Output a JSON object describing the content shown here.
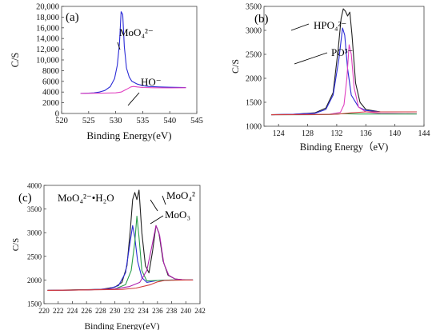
{
  "chart_data": [
    {
      "type": "line",
      "panel_label": "(a)",
      "xlabel": "Binding Energy(eV)",
      "ylabel": "C/S",
      "xlim": [
        520,
        545
      ],
      "ylim": [
        0,
        20000
      ],
      "xticks": [
        520,
        525,
        530,
        535,
        540,
        545
      ],
      "yticks": [
        0,
        2000,
        4000,
        6000,
        8000,
        10000,
        12000,
        14000,
        16000,
        18000,
        20000
      ],
      "ytick_labels": [
        "0",
        "2000",
        "4000",
        "6000",
        "8000",
        "10,000",
        "12,000",
        "14,000",
        "16,000",
        "18,000",
        "20,000"
      ],
      "annotations": [
        {
          "text": "MoO₄²⁻",
          "x": 531.0,
          "y": 18900
        },
        {
          "text": "HO⁻",
          "x": 532.8,
          "y": 5100
        }
      ],
      "series": [
        {
          "color": "#2b2bd6",
          "points": [
            [
              523.5,
              3750
            ],
            [
              525,
              3800
            ],
            [
              526,
              3850
            ],
            [
              527,
              4000
            ],
            [
              528,
              4300
            ],
            [
              529,
              5000
            ],
            [
              529.8,
              6500
            ],
            [
              530.3,
              9000
            ],
            [
              530.7,
              13000
            ],
            [
              531,
              19000
            ],
            [
              531.3,
              18500
            ],
            [
              531.6,
              12500
            ],
            [
              532,
              8500
            ],
            [
              532.5,
              6800
            ],
            [
              533,
              6000
            ],
            [
              534,
              5500
            ],
            [
              535,
              5200
            ],
            [
              536,
              5050
            ],
            [
              538,
              4950
            ],
            [
              540,
              4900
            ],
            [
              543,
              4850
            ]
          ]
        },
        {
          "color": "#e040c0",
          "points": [
            [
              523.5,
              3750
            ],
            [
              526,
              3780
            ],
            [
              528,
              3800
            ],
            [
              530,
              3850
            ],
            [
              531,
              4000
            ],
            [
              532,
              4500
            ],
            [
              532.8,
              4950
            ],
            [
              533.3,
              5050
            ],
            [
              534,
              4950
            ],
            [
              535,
              4850
            ],
            [
              537,
              4800
            ],
            [
              540,
              4780
            ],
            [
              543,
              4800
            ]
          ]
        }
      ]
    },
    {
      "type": "line",
      "panel_label": "(b)",
      "xlabel": "Binding Energy（eV)",
      "ylabel": "C/S",
      "xlim": [
        122,
        144
      ],
      "ylim": [
        1000,
        3500
      ],
      "xticks": [
        124,
        128,
        132,
        136,
        140,
        144
      ],
      "yticks": [
        1000,
        1500,
        2000,
        2500,
        3000,
        3500
      ],
      "ytick_labels": [
        "1000",
        "1500",
        "2000",
        "2500",
        "3000",
        "3500"
      ],
      "annotations": [
        {
          "text": "HPO₄²⁻",
          "x": 133.2,
          "y": 3050
        },
        {
          "text": "PO³⁻",
          "x": 133.8,
          "y": 2700
        }
      ],
      "series": [
        {
          "color": "#222222",
          "points": [
            [
              123,
              1240
            ],
            [
              126,
              1250
            ],
            [
              129,
              1280
            ],
            [
              130.5,
              1380
            ],
            [
              131.5,
              1700
            ],
            [
              132.2,
              2600
            ],
            [
              132.6,
              3250
            ],
            [
              132.9,
              3450
            ],
            [
              133.2,
              3400
            ],
            [
              133.5,
              3300
            ],
            [
              133.8,
              3380
            ],
            [
              134.1,
              2900
            ],
            [
              134.6,
              1900
            ],
            [
              135.2,
              1500
            ],
            [
              136,
              1350
            ],
            [
              138,
              1300
            ],
            [
              140,
              1300
            ],
            [
              143,
              1300
            ]
          ]
        },
        {
          "color": "#2b2bd6",
          "points": [
            [
              123,
              1240
            ],
            [
              126,
              1250
            ],
            [
              129,
              1270
            ],
            [
              130.5,
              1350
            ],
            [
              131.5,
              1650
            ],
            [
              132.3,
              2400
            ],
            [
              132.8,
              3050
            ],
            [
              133.1,
              2900
            ],
            [
              133.5,
              2200
            ],
            [
              134,
              1650
            ],
            [
              135,
              1400
            ],
            [
              136,
              1330
            ],
            [
              138,
              1300
            ],
            [
              143,
              1300
            ]
          ]
        },
        {
          "color": "#e040c0",
          "points": [
            [
              123,
              1240
            ],
            [
              128,
              1245
            ],
            [
              131,
              1250
            ],
            [
              132.5,
              1290
            ],
            [
              133,
              1450
            ],
            [
              133.4,
              2000
            ],
            [
              133.7,
              2700
            ],
            [
              134.0,
              2500
            ],
            [
              134.4,
              1800
            ],
            [
              135,
              1400
            ],
            [
              136,
              1300
            ],
            [
              138,
              1270
            ],
            [
              143,
              1260
            ]
          ]
        },
        {
          "color": "#2a9e4a",
          "points": [
            [
              123,
              1240
            ],
            [
              128,
              1240
            ],
            [
              131,
              1245
            ],
            [
              132.5,
              1260
            ],
            [
              133.5,
              1260
            ],
            [
              135,
              1255
            ],
            [
              138,
              1255
            ],
            [
              143,
              1255
            ]
          ]
        },
        {
          "color": "#d23c3c",
          "points": [
            [
              123,
              1240
            ],
            [
              128,
              1242
            ],
            [
              132,
              1250
            ],
            [
              134,
              1280
            ],
            [
              136,
              1300
            ],
            [
              140,
              1300
            ],
            [
              143,
              1300
            ]
          ]
        }
      ]
    },
    {
      "type": "line",
      "panel_label": "(c)",
      "xlabel": "Binding Energy(eV)",
      "ylabel": "C/S",
      "xlim": [
        220,
        242
      ],
      "ylim": [
        1500,
        4000
      ],
      "xticks": [
        220,
        222,
        224,
        226,
        228,
        230,
        232,
        234,
        236,
        238,
        240,
        242
      ],
      "yticks": [
        1500,
        2000,
        2500,
        3000,
        3500,
        4000
      ],
      "ytick_labels": [
        "1500",
        "2000",
        "2500",
        "3000",
        "3500",
        "4000"
      ],
      "annotations": [
        {
          "text": "MoO₄²⁻•H₂O",
          "x": 232.4,
          "y": 3150
        },
        {
          "text": "MoO₄²",
          "x": 233.0,
          "y": 3800
        },
        {
          "text": "MoO₃",
          "x": 235.9,
          "y": 3150
        }
      ],
      "series": [
        {
          "color": "#222222",
          "points": [
            [
              220.5,
              1780
            ],
            [
              224,
              1790
            ],
            [
              228,
              1800
            ],
            [
              230,
              1850
            ],
            [
              231,
              1950
            ],
            [
              231.7,
              2300
            ],
            [
              232.2,
              3100
            ],
            [
              232.5,
              3700
            ],
            [
              232.8,
              3850
            ],
            [
              233.1,
              3700
            ],
            [
              233.4,
              3900
            ],
            [
              233.8,
              3000
            ],
            [
              234.3,
              2300
            ],
            [
              234.8,
              2150
            ],
            [
              235.3,
              2600
            ],
            [
              235.8,
              3150
            ],
            [
              236.2,
              3000
            ],
            [
              236.8,
              2400
            ],
            [
              237.5,
              2100
            ],
            [
              238.5,
              2020
            ],
            [
              240,
              2000
            ],
            [
              241,
              2000
            ]
          ]
        },
        {
          "color": "#2b2bd6",
          "points": [
            [
              220.5,
              1780
            ],
            [
              226,
              1790
            ],
            [
              229,
              1810
            ],
            [
              230.5,
              1880
            ],
            [
              231.5,
              2150
            ],
            [
              232.1,
              2750
            ],
            [
              232.5,
              3150
            ],
            [
              232.8,
              2900
            ],
            [
              233.2,
              2400
            ],
            [
              233.8,
              2050
            ],
            [
              234.5,
              1950
            ],
            [
              236,
              1990
            ],
            [
              238,
              2000
            ],
            [
              241,
              2000
            ]
          ]
        },
        {
          "color": "#2a9e4a",
          "points": [
            [
              220.5,
              1780
            ],
            [
              226,
              1790
            ],
            [
              230,
              1810
            ],
            [
              231.5,
              1900
            ],
            [
              232.3,
              2200
            ],
            [
              232.8,
              2800
            ],
            [
              233.1,
              3350
            ],
            [
              233.4,
              2900
            ],
            [
              233.8,
              2200
            ],
            [
              234.5,
              1980
            ],
            [
              236,
              1990
            ],
            [
              238,
              2000
            ],
            [
              241,
              2000
            ]
          ]
        },
        {
          "color": "#b023b0",
          "points": [
            [
              220.5,
              1780
            ],
            [
              226,
              1790
            ],
            [
              230,
              1810
            ],
            [
              232,
              1860
            ],
            [
              233.5,
              1950
            ],
            [
              234.5,
              2200
            ],
            [
              235.2,
              2700
            ],
            [
              235.8,
              3150
            ],
            [
              236.3,
              2950
            ],
            [
              236.9,
              2350
            ],
            [
              237.6,
              2100
            ],
            [
              238.5,
              2020
            ],
            [
              240,
              2000
            ],
            [
              241,
              2000
            ]
          ]
        },
        {
          "color": "#d23c3c",
          "points": [
            [
              220.5,
              1780
            ],
            [
              226,
              1790
            ],
            [
              231,
              1800
            ],
            [
              233,
              1830
            ],
            [
              235,
              1900
            ],
            [
              236,
              1960
            ],
            [
              237,
              1990
            ],
            [
              240,
              2000
            ],
            [
              241,
              2000
            ]
          ]
        }
      ]
    }
  ]
}
